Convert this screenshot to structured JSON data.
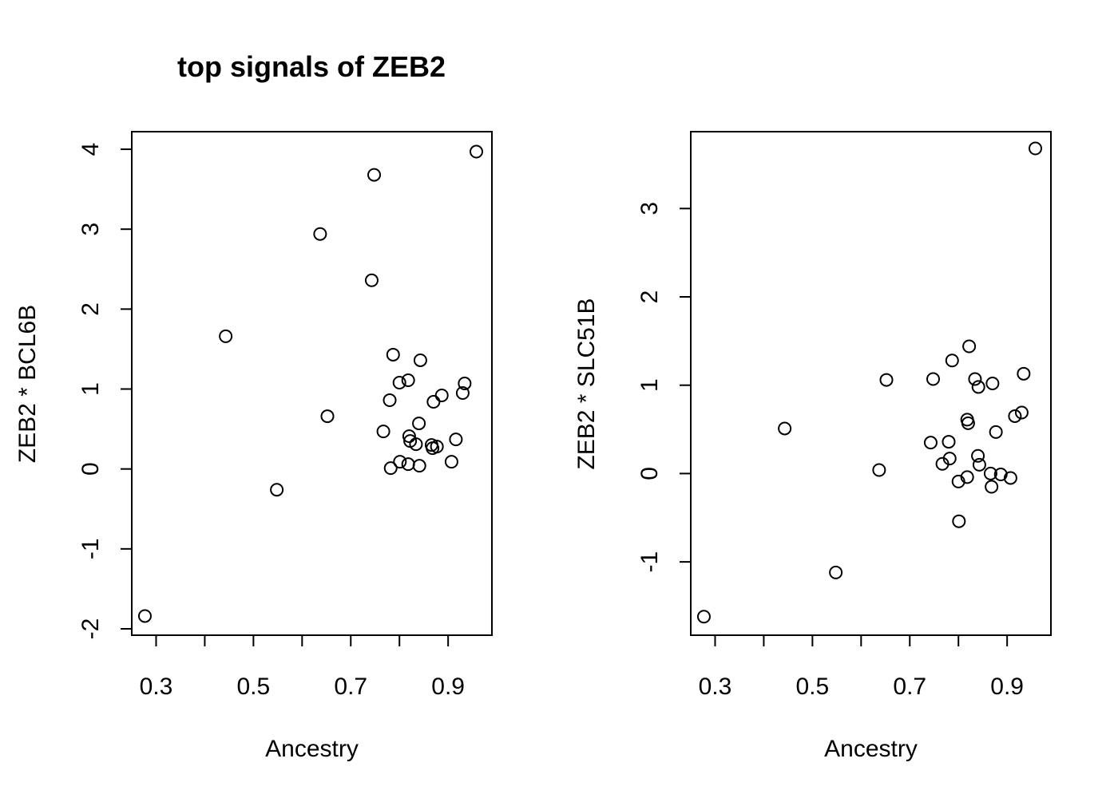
{
  "chart_data": [
    {
      "type": "scatter",
      "title": "top signals of ZEB2",
      "xlabel": "Ancestry",
      "ylabel": "ZEB2 * BCL6B",
      "xlim": [
        0.25,
        0.99
      ],
      "ylim": [
        -2.08,
        4.22
      ],
      "xticks": [
        0.3,
        0.4,
        0.5,
        0.6,
        0.7,
        0.8,
        0.9
      ],
      "xtick_labels": [
        "0.3",
        "",
        "0.5",
        "",
        "0.7",
        "",
        "0.9"
      ],
      "yticks": [
        -2,
        -1,
        0,
        1,
        2,
        3,
        4
      ],
      "ytick_labels": [
        "-2",
        "-1",
        "0",
        "1",
        "2",
        "3",
        "4"
      ],
      "grid": false,
      "points": [
        {
          "x": 0.277,
          "y": -1.84
        },
        {
          "x": 0.443,
          "y": 1.66
        },
        {
          "x": 0.548,
          "y": -0.26
        },
        {
          "x": 0.637,
          "y": 2.94
        },
        {
          "x": 0.652,
          "y": 0.66
        },
        {
          "x": 0.743,
          "y": 2.36
        },
        {
          "x": 0.748,
          "y": 3.68
        },
        {
          "x": 0.767,
          "y": 0.47
        },
        {
          "x": 0.78,
          "y": 0.86
        },
        {
          "x": 0.782,
          "y": 0.01
        },
        {
          "x": 0.787,
          "y": 1.43
        },
        {
          "x": 0.8,
          "y": 1.08
        },
        {
          "x": 0.801,
          "y": 0.09
        },
        {
          "x": 0.818,
          "y": 1.11
        },
        {
          "x": 0.818,
          "y": 0.06
        },
        {
          "x": 0.82,
          "y": 0.41
        },
        {
          "x": 0.822,
          "y": 0.35
        },
        {
          "x": 0.834,
          "y": 0.31
        },
        {
          "x": 0.84,
          "y": 0.57
        },
        {
          "x": 0.841,
          "y": 0.04
        },
        {
          "x": 0.843,
          "y": 1.36
        },
        {
          "x": 0.866,
          "y": 0.3
        },
        {
          "x": 0.868,
          "y": 0.26
        },
        {
          "x": 0.87,
          "y": 0.84
        },
        {
          "x": 0.877,
          "y": 0.28
        },
        {
          "x": 0.887,
          "y": 0.92
        },
        {
          "x": 0.907,
          "y": 0.09
        },
        {
          "x": 0.916,
          "y": 0.37
        },
        {
          "x": 0.93,
          "y": 0.95
        },
        {
          "x": 0.934,
          "y": 1.07
        },
        {
          "x": 0.958,
          "y": 3.97
        }
      ]
    },
    {
      "type": "scatter",
      "title": "",
      "xlabel": "Ancestry",
      "ylabel": "ZEB2 * SLC51B",
      "xlim": [
        0.25,
        0.99
      ],
      "ylim": [
        -1.83,
        3.87
      ],
      "xticks": [
        0.3,
        0.4,
        0.5,
        0.6,
        0.7,
        0.8,
        0.9
      ],
      "xtick_labels": [
        "0.3",
        "",
        "0.5",
        "",
        "0.7",
        "",
        "0.9"
      ],
      "yticks": [
        -1,
        0,
        1,
        2,
        3
      ],
      "ytick_labels": [
        "-1",
        "0",
        "1",
        "2",
        "3"
      ],
      "grid": false,
      "points": [
        {
          "x": 0.277,
          "y": -1.62
        },
        {
          "x": 0.443,
          "y": 0.51
        },
        {
          "x": 0.548,
          "y": -1.12
        },
        {
          "x": 0.637,
          "y": 0.04
        },
        {
          "x": 0.652,
          "y": 1.06
        },
        {
          "x": 0.743,
          "y": 0.35
        },
        {
          "x": 0.748,
          "y": 1.07
        },
        {
          "x": 0.767,
          "y": 0.11
        },
        {
          "x": 0.78,
          "y": 0.36
        },
        {
          "x": 0.782,
          "y": 0.17
        },
        {
          "x": 0.787,
          "y": 1.28
        },
        {
          "x": 0.8,
          "y": -0.09
        },
        {
          "x": 0.801,
          "y": -0.54
        },
        {
          "x": 0.818,
          "y": 0.61
        },
        {
          "x": 0.818,
          "y": -0.04
        },
        {
          "x": 0.82,
          "y": 0.57
        },
        {
          "x": 0.822,
          "y": 1.44
        },
        {
          "x": 0.834,
          "y": 1.07
        },
        {
          "x": 0.84,
          "y": 0.2
        },
        {
          "x": 0.841,
          "y": 0.98
        },
        {
          "x": 0.843,
          "y": 0.1
        },
        {
          "x": 0.866,
          "y": 0.0
        },
        {
          "x": 0.868,
          "y": -0.15
        },
        {
          "x": 0.87,
          "y": 1.02
        },
        {
          "x": 0.877,
          "y": 0.47
        },
        {
          "x": 0.887,
          "y": -0.01
        },
        {
          "x": 0.907,
          "y": -0.05
        },
        {
          "x": 0.916,
          "y": 0.65
        },
        {
          "x": 0.93,
          "y": 0.69
        },
        {
          "x": 0.934,
          "y": 1.13
        },
        {
          "x": 0.958,
          "y": 3.68
        }
      ]
    }
  ]
}
